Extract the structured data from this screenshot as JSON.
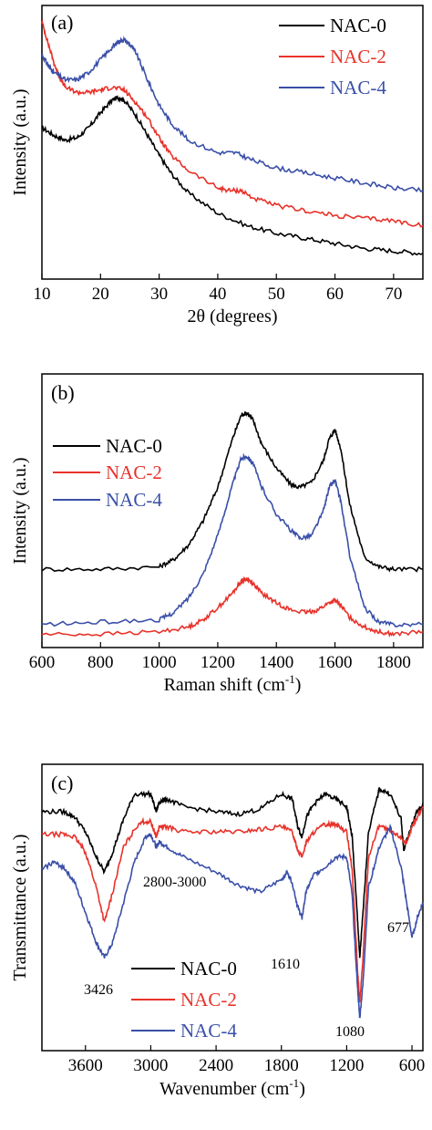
{
  "colors": {
    "NAC-0": "#000000",
    "NAC-2": "#e8322a",
    "NAC-4": "#3a4fa8"
  },
  "chart_data": [
    {
      "panel": "(a)",
      "type": "line",
      "xlabel": "2θ (degrees)",
      "ylabel": "Intensity (a.u.)",
      "xlim": [
        10,
        75
      ],
      "ylim": [
        0,
        1
      ],
      "xticks": [
        10,
        20,
        30,
        40,
        50,
        60,
        70
      ],
      "yticks": [],
      "legend_position": "top-right",
      "series": [
        {
          "name": "NAC-0",
          "x": [
            10,
            12,
            14,
            16,
            18,
            20,
            22,
            23,
            24,
            26,
            28,
            30,
            32,
            35,
            40,
            45,
            50,
            55,
            60,
            65,
            70,
            75
          ],
          "y": [
            0.58,
            0.55,
            0.53,
            0.54,
            0.58,
            0.64,
            0.69,
            0.7,
            0.69,
            0.63,
            0.55,
            0.47,
            0.4,
            0.32,
            0.24,
            0.19,
            0.16,
            0.14,
            0.12,
            0.1,
            0.09,
            0.08
          ]
        },
        {
          "name": "NAC-2",
          "x": [
            10,
            11,
            12,
            13,
            14,
            16,
            18,
            20,
            22,
            24,
            26,
            28,
            30,
            32,
            35,
            40,
            42,
            44,
            46,
            50,
            55,
            60,
            65,
            70,
            75
          ],
          "y": [
            1.0,
            0.92,
            0.84,
            0.78,
            0.74,
            0.72,
            0.72,
            0.73,
            0.74,
            0.73,
            0.68,
            0.62,
            0.54,
            0.47,
            0.41,
            0.34,
            0.33,
            0.33,
            0.3,
            0.27,
            0.25,
            0.23,
            0.22,
            0.21,
            0.19
          ]
        },
        {
          "name": "NAC-4",
          "x": [
            10,
            11,
            12,
            14,
            16,
            18,
            20,
            22,
            23,
            24,
            25,
            26,
            28,
            30,
            32,
            35,
            40,
            43,
            46,
            50,
            55,
            60,
            65,
            70,
            75
          ],
          "y": [
            0.87,
            0.83,
            0.8,
            0.77,
            0.77,
            0.8,
            0.85,
            0.9,
            0.92,
            0.93,
            0.91,
            0.88,
            0.77,
            0.67,
            0.6,
            0.53,
            0.48,
            0.48,
            0.45,
            0.42,
            0.4,
            0.38,
            0.36,
            0.34,
            0.33
          ]
        }
      ]
    },
    {
      "panel": "(b)",
      "type": "line",
      "xlabel": "Raman shift (cm-1)",
      "ylabel": "Intensity (a.u.)",
      "xlim": [
        600,
        1900
      ],
      "ylim": [
        0,
        1
      ],
      "xticks": [
        600,
        800,
        1000,
        1200,
        1400,
        1600,
        1800
      ],
      "yticks": [],
      "legend_position": "middle-left",
      "series": [
        {
          "name": "NAC-0",
          "x": [
            600,
            800,
            1000,
            1050,
            1100,
            1150,
            1200,
            1250,
            1280,
            1300,
            1320,
            1350,
            1400,
            1450,
            1480,
            1520,
            1560,
            1580,
            1600,
            1620,
            1650,
            1700,
            1750,
            1800,
            1900
          ],
          "y": [
            0.28,
            0.28,
            0.29,
            0.32,
            0.38,
            0.48,
            0.62,
            0.82,
            0.92,
            0.93,
            0.9,
            0.8,
            0.7,
            0.63,
            0.62,
            0.64,
            0.73,
            0.82,
            0.86,
            0.78,
            0.55,
            0.33,
            0.29,
            0.28,
            0.28
          ]
        },
        {
          "name": "NAC-2",
          "x": [
            600,
            800,
            1000,
            1100,
            1150,
            1200,
            1250,
            1280,
            1300,
            1320,
            1350,
            1400,
            1450,
            1500,
            1540,
            1580,
            1600,
            1620,
            1650,
            1700,
            1750,
            1800,
            1900
          ],
          "y": [
            0.01,
            0.01,
            0.02,
            0.04,
            0.07,
            0.12,
            0.18,
            0.23,
            0.24,
            0.22,
            0.18,
            0.14,
            0.11,
            0.1,
            0.11,
            0.14,
            0.15,
            0.13,
            0.08,
            0.04,
            0.02,
            0.01,
            0.02
          ]
        },
        {
          "name": "NAC-4",
          "x": [
            600,
            800,
            1000,
            1050,
            1100,
            1150,
            1200,
            1250,
            1280,
            1300,
            1320,
            1350,
            1400,
            1450,
            1480,
            1520,
            1560,
            1580,
            1600,
            1620,
            1650,
            1700,
            1750,
            1800,
            1900
          ],
          "y": [
            0.05,
            0.06,
            0.07,
            0.1,
            0.16,
            0.26,
            0.42,
            0.63,
            0.74,
            0.75,
            0.72,
            0.62,
            0.51,
            0.44,
            0.41,
            0.42,
            0.52,
            0.62,
            0.65,
            0.56,
            0.34,
            0.12,
            0.06,
            0.05,
            0.05
          ]
        }
      ]
    },
    {
      "panel": "(c)",
      "type": "line",
      "xlabel": "Wavenumber (cm-1)",
      "ylabel": "Transmittance (a.u.)",
      "xlim": [
        4000,
        500
      ],
      "ylim": [
        0,
        1
      ],
      "xticks": [
        3600,
        3000,
        2400,
        1800,
        1200,
        600
      ],
      "yticks": [],
      "legend_position": "bottom-center",
      "annotations": [
        "677",
        "2800-3000",
        "3426",
        "1610",
        "1080"
      ],
      "series": [
        {
          "name": "NAC-0",
          "x": [
            4000,
            3800,
            3700,
            3600,
            3500,
            3426,
            3350,
            3250,
            3150,
            3000,
            2950,
            2920,
            2850,
            2700,
            2400,
            2200,
            2000,
            1800,
            1700,
            1650,
            1610,
            1570,
            1500,
            1400,
            1300,
            1200,
            1150,
            1100,
            1080,
            1050,
            1000,
            900,
            800,
            700,
            677,
            620,
            560,
            500
          ],
          "y": [
            0.88,
            0.88,
            0.86,
            0.8,
            0.7,
            0.64,
            0.72,
            0.85,
            0.95,
            0.95,
            0.88,
            0.92,
            0.93,
            0.9,
            0.88,
            0.87,
            0.89,
            0.95,
            0.93,
            0.82,
            0.78,
            0.86,
            0.91,
            0.95,
            0.93,
            0.9,
            0.78,
            0.45,
            0.3,
            0.48,
            0.8,
            0.97,
            0.95,
            0.85,
            0.73,
            0.8,
            0.88,
            0.9
          ]
        },
        {
          "name": "NAC-2",
          "x": [
            4000,
            3800,
            3700,
            3600,
            3500,
            3426,
            3350,
            3250,
            3100,
            3000,
            2950,
            2920,
            2850,
            2700,
            2400,
            2200,
            2000,
            1800,
            1700,
            1650,
            1610,
            1570,
            1500,
            1400,
            1300,
            1200,
            1150,
            1100,
            1080,
            1050,
            1000,
            900,
            800,
            700,
            650,
            600,
            500
          ],
          "y": [
            0.79,
            0.79,
            0.78,
            0.72,
            0.58,
            0.44,
            0.56,
            0.74,
            0.84,
            0.84,
            0.78,
            0.82,
            0.82,
            0.8,
            0.8,
            0.8,
            0.81,
            0.82,
            0.8,
            0.73,
            0.7,
            0.76,
            0.8,
            0.83,
            0.83,
            0.8,
            0.65,
            0.25,
            0.12,
            0.3,
            0.7,
            0.83,
            0.8,
            0.78,
            0.75,
            0.82,
            0.9
          ]
        },
        {
          "name": "NAC-4",
          "x": [
            4000,
            3900,
            3800,
            3700,
            3600,
            3500,
            3426,
            3350,
            3250,
            3150,
            3050,
            3000,
            2950,
            2920,
            2850,
            2700,
            2400,
            2200,
            2000,
            1800,
            1750,
            1700,
            1650,
            1610,
            1570,
            1500,
            1400,
            1300,
            1200,
            1150,
            1100,
            1080,
            1050,
            1000,
            900,
            800,
            700,
            650,
            600,
            550,
            500
          ],
          "y": [
            0.65,
            0.68,
            0.66,
            0.6,
            0.48,
            0.36,
            0.3,
            0.36,
            0.52,
            0.68,
            0.78,
            0.79,
            0.74,
            0.76,
            0.74,
            0.7,
            0.64,
            0.59,
            0.56,
            0.61,
            0.64,
            0.6,
            0.5,
            0.46,
            0.57,
            0.63,
            0.66,
            0.7,
            0.7,
            0.55,
            0.18,
            0.06,
            0.2,
            0.58,
            0.74,
            0.82,
            0.66,
            0.52,
            0.38,
            0.46,
            0.52
          ]
        }
      ]
    }
  ]
}
